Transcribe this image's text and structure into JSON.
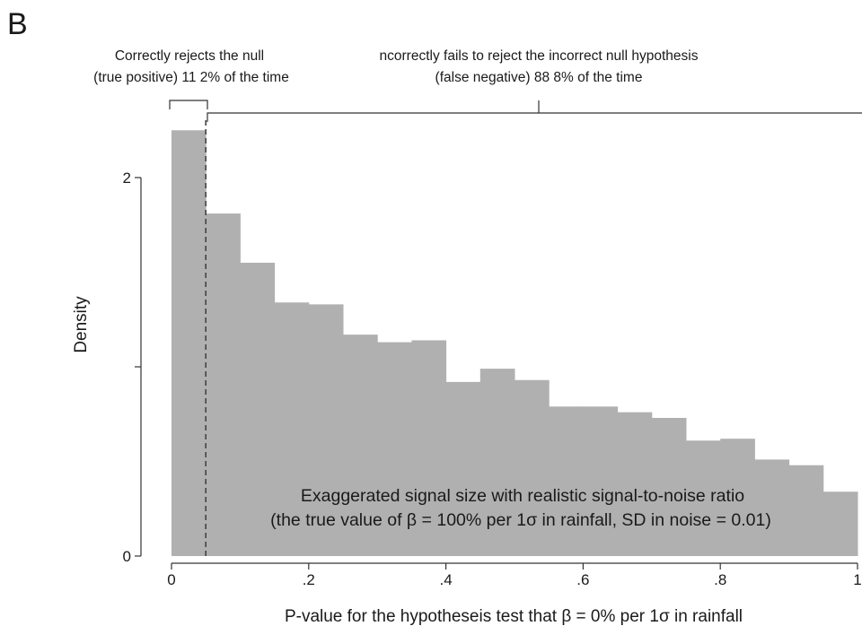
{
  "panel_label": "B",
  "annotations": {
    "left_line1": "Correctly rejects the null",
    "left_line2": "(true positive) 11 2% of the time",
    "right_line1": "ncorrectly fails to reject the incorrect null hypothesis",
    "right_line2": "(false negative) 88 8% of the time"
  },
  "inset_text": {
    "line1": "Exaggerated signal size with realistic signal-to-noise ratio",
    "line2": "(the true value of β = 100% per 1σ in rainfall, SD in noise = 0.01)"
  },
  "colors": {
    "bars": "#b0b0b0",
    "axis": "#333333"
  },
  "chart_data": {
    "type": "bar",
    "subtype": "histogram",
    "xlabel": "P-value for the hypotheseis test that β = 0% per 1σ in rainfall",
    "ylabel": "Density",
    "xlim": [
      0,
      1
    ],
    "ylim": [
      0,
      2
    ],
    "x_ticks": [
      0,
      0.2,
      0.4,
      0.6,
      0.8,
      1
    ],
    "x_tick_labels": [
      "0",
      ".2",
      ".4",
      ".6",
      ".8",
      "1"
    ],
    "y_ticks": [
      0,
      1,
      2
    ],
    "y_tick_labels": [
      "0",
      "",
      "2"
    ],
    "bin_width": 0.05,
    "bins_start": [
      0,
      0.05,
      0.1,
      0.15,
      0.2,
      0.25,
      0.3,
      0.35,
      0.4,
      0.45,
      0.5,
      0.55,
      0.6,
      0.65,
      0.7,
      0.75,
      0.8,
      0.85,
      0.9,
      0.95
    ],
    "values": [
      2.25,
      1.81,
      1.55,
      1.34,
      1.33,
      1.17,
      1.13,
      1.14,
      0.92,
      0.99,
      0.93,
      0.79,
      0.79,
      0.76,
      0.73,
      0.61,
      0.62,
      0.51,
      0.48,
      0.34
    ],
    "reference_line": {
      "x": 0.05,
      "style": "dashed"
    },
    "grid": false,
    "legend": "none"
  }
}
